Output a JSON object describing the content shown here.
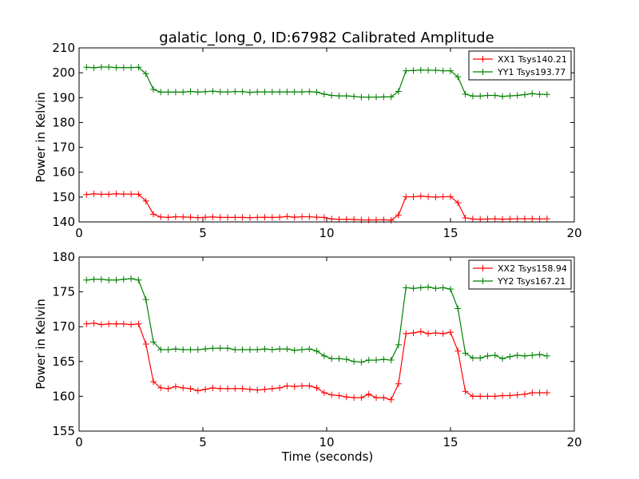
{
  "chart_data": [
    {
      "type": "line",
      "title": "galatic_long_0, ID:67982 Calibrated Amplitude",
      "xlabel": "",
      "ylabel": "Power in Kelvin",
      "xlim": [
        0,
        20
      ],
      "ylim": [
        140,
        210
      ],
      "xticks": [
        "0",
        "5",
        "10",
        "15",
        "20"
      ],
      "yticks": [
        "140",
        "150",
        "160",
        "170",
        "180",
        "190",
        "200",
        "210"
      ],
      "grid": false,
      "legend_position": "top-right",
      "x": [
        0.3,
        0.6,
        0.9,
        1.2,
        1.5,
        1.8,
        2.1,
        2.4,
        2.7,
        3.0,
        3.3,
        3.6,
        3.9,
        4.2,
        4.5,
        4.8,
        5.1,
        5.4,
        5.7,
        6.0,
        6.3,
        6.6,
        6.9,
        7.2,
        7.5,
        7.8,
        8.1,
        8.4,
        8.7,
        9.0,
        9.3,
        9.6,
        9.9,
        10.2,
        10.5,
        10.8,
        11.1,
        11.4,
        11.7,
        12.0,
        12.3,
        12.6,
        12.9,
        13.2,
        13.5,
        13.8,
        14.1,
        14.4,
        14.7,
        15.0,
        15.3,
        15.6,
        15.9,
        16.2,
        16.5,
        16.8,
        17.1,
        17.4,
        17.7,
        18.0,
        18.3,
        18.6,
        18.9
      ],
      "series": [
        {
          "name": "XX1 Tsys140.21",
          "color": "#ff0000",
          "values": [
            151.0,
            151.3,
            151.1,
            151.1,
            151.3,
            151.2,
            151.2,
            151.1,
            148.4,
            143.1,
            142.0,
            141.8,
            142.1,
            142.0,
            141.9,
            141.7,
            141.9,
            142.0,
            141.8,
            141.8,
            141.8,
            141.8,
            141.7,
            141.8,
            141.9,
            141.8,
            141.9,
            142.2,
            141.9,
            142.1,
            142.1,
            141.9,
            141.8,
            141.2,
            141.1,
            141.1,
            141.0,
            140.8,
            140.8,
            140.8,
            140.9,
            140.7,
            142.8,
            150.1,
            150.1,
            150.4,
            150.1,
            150.0,
            150.1,
            150.2,
            147.7,
            141.6,
            141.2,
            141.1,
            141.2,
            141.3,
            141.1,
            141.2,
            141.3,
            141.3,
            141.3,
            141.2,
            141.3
          ]
        },
        {
          "name": "YY1 Tsys193.77",
          "color": "#008000",
          "values": [
            202.2,
            202.0,
            202.3,
            202.3,
            202.1,
            202.1,
            202.1,
            202.2,
            199.6,
            193.3,
            192.2,
            192.2,
            192.2,
            192.2,
            192.5,
            192.2,
            192.4,
            192.6,
            192.3,
            192.3,
            192.4,
            192.4,
            192.1,
            192.3,
            192.3,
            192.3,
            192.3,
            192.3,
            192.3,
            192.3,
            192.4,
            192.2,
            191.4,
            190.9,
            190.7,
            190.7,
            190.5,
            190.2,
            190.2,
            190.2,
            190.3,
            190.3,
            192.5,
            200.8,
            200.9,
            201.1,
            201.0,
            201.0,
            200.8,
            200.8,
            198.3,
            191.4,
            190.6,
            190.6,
            190.9,
            190.9,
            190.5,
            190.7,
            190.9,
            191.2,
            191.6,
            191.3,
            191.3
          ]
        }
      ]
    },
    {
      "type": "line",
      "title": "",
      "xlabel": "Time (seconds)",
      "ylabel": "Power in Kelvin",
      "xlim": [
        0,
        20
      ],
      "ylim": [
        155,
        180
      ],
      "xticks": [
        "0",
        "5",
        "10",
        "15",
        "20"
      ],
      "yticks": [
        "155",
        "160",
        "165",
        "170",
        "175",
        "180"
      ],
      "grid": false,
      "legend_position": "top-right",
      "x": [
        0.3,
        0.6,
        0.9,
        1.2,
        1.5,
        1.8,
        2.1,
        2.4,
        2.7,
        3.0,
        3.3,
        3.6,
        3.9,
        4.2,
        4.5,
        4.8,
        5.1,
        5.4,
        5.7,
        6.0,
        6.3,
        6.6,
        6.9,
        7.2,
        7.5,
        7.8,
        8.1,
        8.4,
        8.7,
        9.0,
        9.3,
        9.6,
        9.9,
        10.2,
        10.5,
        10.8,
        11.1,
        11.4,
        11.7,
        12.0,
        12.3,
        12.6,
        12.9,
        13.2,
        13.5,
        13.8,
        14.1,
        14.4,
        14.7,
        15.0,
        15.3,
        15.6,
        15.9,
        16.2,
        16.5,
        16.8,
        17.1,
        17.4,
        17.7,
        18.0,
        18.3,
        18.6,
        18.9
      ],
      "series": [
        {
          "name": "XX2 Tsys158.94",
          "color": "#ff0000",
          "values": [
            170.4,
            170.5,
            170.3,
            170.4,
            170.4,
            170.4,
            170.3,
            170.4,
            167.5,
            162.1,
            161.2,
            161.1,
            161.4,
            161.2,
            161.1,
            160.8,
            161.0,
            161.2,
            161.1,
            161.1,
            161.1,
            161.1,
            161.0,
            160.9,
            161.0,
            161.1,
            161.2,
            161.5,
            161.4,
            161.5,
            161.5,
            161.2,
            160.5,
            160.2,
            160.1,
            159.9,
            159.8,
            159.8,
            160.3,
            159.8,
            159.8,
            159.5,
            161.8,
            169.0,
            169.1,
            169.3,
            169.0,
            169.1,
            169.0,
            169.2,
            166.5,
            160.7,
            160.0,
            160.0,
            160.0,
            160.0,
            160.1,
            160.1,
            160.2,
            160.3,
            160.5,
            160.5,
            160.5
          ]
        },
        {
          "name": "YY2 Tsys167.21",
          "color": "#008000",
          "values": [
            176.7,
            176.8,
            176.8,
            176.7,
            176.7,
            176.8,
            176.9,
            176.7,
            173.9,
            167.8,
            166.7,
            166.7,
            166.8,
            166.7,
            166.7,
            166.7,
            166.8,
            166.9,
            166.9,
            166.9,
            166.7,
            166.7,
            166.7,
            166.7,
            166.8,
            166.7,
            166.8,
            166.8,
            166.6,
            166.7,
            166.8,
            166.5,
            165.8,
            165.4,
            165.4,
            165.3,
            165.0,
            164.9,
            165.2,
            165.2,
            165.3,
            165.2,
            167.4,
            175.6,
            175.5,
            175.6,
            175.7,
            175.5,
            175.6,
            175.4,
            172.6,
            166.2,
            165.5,
            165.5,
            165.8,
            165.9,
            165.4,
            165.7,
            165.9,
            165.8,
            165.9,
            166.0,
            165.8
          ]
        }
      ]
    }
  ]
}
